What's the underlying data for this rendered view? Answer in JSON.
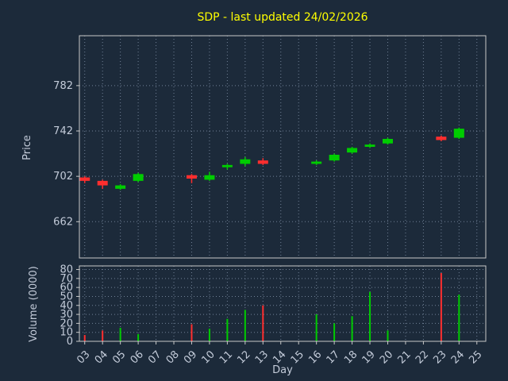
{
  "chart_data": {
    "type": "candlestick",
    "title": "SDP - last updated 24/02/2026",
    "xlabel": "Day",
    "ylabel_price": "Price",
    "ylabel_volume": "Volume (0000)",
    "x_tick_labels": [
      "03",
      "04",
      "05",
      "06",
      "07",
      "08",
      "09",
      "10",
      "11",
      "12",
      "13",
      "14",
      "15",
      "16",
      "17",
      "18",
      "19",
      "20",
      "21",
      "22",
      "23",
      "24",
      "25"
    ],
    "price_ticks": [
      662,
      702,
      742,
      782
    ],
    "volume_ticks": [
      0,
      10,
      20,
      30,
      40,
      50,
      60,
      70,
      80
    ],
    "price_ylim": [
      630,
      826
    ],
    "volume_ylim": [
      0,
      84
    ],
    "xlim": [
      2.7,
      25.5
    ],
    "grid": true,
    "colors": {
      "background": "#1c2a3a",
      "title": "#ffff00",
      "tick": "#c3cbd9",
      "spine": "#c8c8c8",
      "grid": "#7a8aa0",
      "up": "#00cc00",
      "down": "#ff2e2e"
    },
    "candles": [
      {
        "day": 3,
        "open": 701,
        "high": 702,
        "low": 696,
        "close": 698,
        "volume": 7
      },
      {
        "day": 4,
        "open": 698,
        "high": 699,
        "low": 691,
        "close": 694,
        "volume": 12
      },
      {
        "day": 5,
        "open": 691,
        "high": 695,
        "low": 690,
        "close": 694,
        "volume": 15
      },
      {
        "day": 6,
        "open": 698,
        "high": 705,
        "low": 697,
        "close": 704,
        "volume": 8
      },
      {
        "day": 9,
        "open": 703,
        "high": 704,
        "low": 696,
        "close": 700,
        "volume": 19
      },
      {
        "day": 10,
        "open": 699,
        "high": 706,
        "low": 698,
        "close": 703,
        "volume": 14
      },
      {
        "day": 11,
        "open": 710,
        "high": 713,
        "low": 708,
        "close": 712,
        "volume": 25
      },
      {
        "day": 12,
        "open": 713,
        "high": 719,
        "low": 711,
        "close": 717,
        "volume": 35
      },
      {
        "day": 13,
        "open": 716,
        "high": 718,
        "low": 712,
        "close": 713,
        "volume": 40
      },
      {
        "day": 16,
        "open": 713,
        "high": 716,
        "low": 712,
        "close": 715,
        "volume": 30
      },
      {
        "day": 17,
        "open": 716,
        "high": 722,
        "low": 715,
        "close": 721,
        "volume": 20
      },
      {
        "day": 18,
        "open": 723,
        "high": 728,
        "low": 722,
        "close": 727,
        "volume": 28
      },
      {
        "day": 19,
        "open": 728,
        "high": 731,
        "low": 727,
        "close": 730,
        "volume": 55
      },
      {
        "day": 20,
        "open": 731,
        "high": 736,
        "low": 730,
        "close": 735,
        "volume": 12
      },
      {
        "day": 23,
        "open": 737,
        "high": 738,
        "low": 733,
        "close": 734,
        "volume": 76
      },
      {
        "day": 24,
        "open": 736,
        "high": 745,
        "low": 735,
        "close": 744,
        "volume": 52
      }
    ]
  }
}
